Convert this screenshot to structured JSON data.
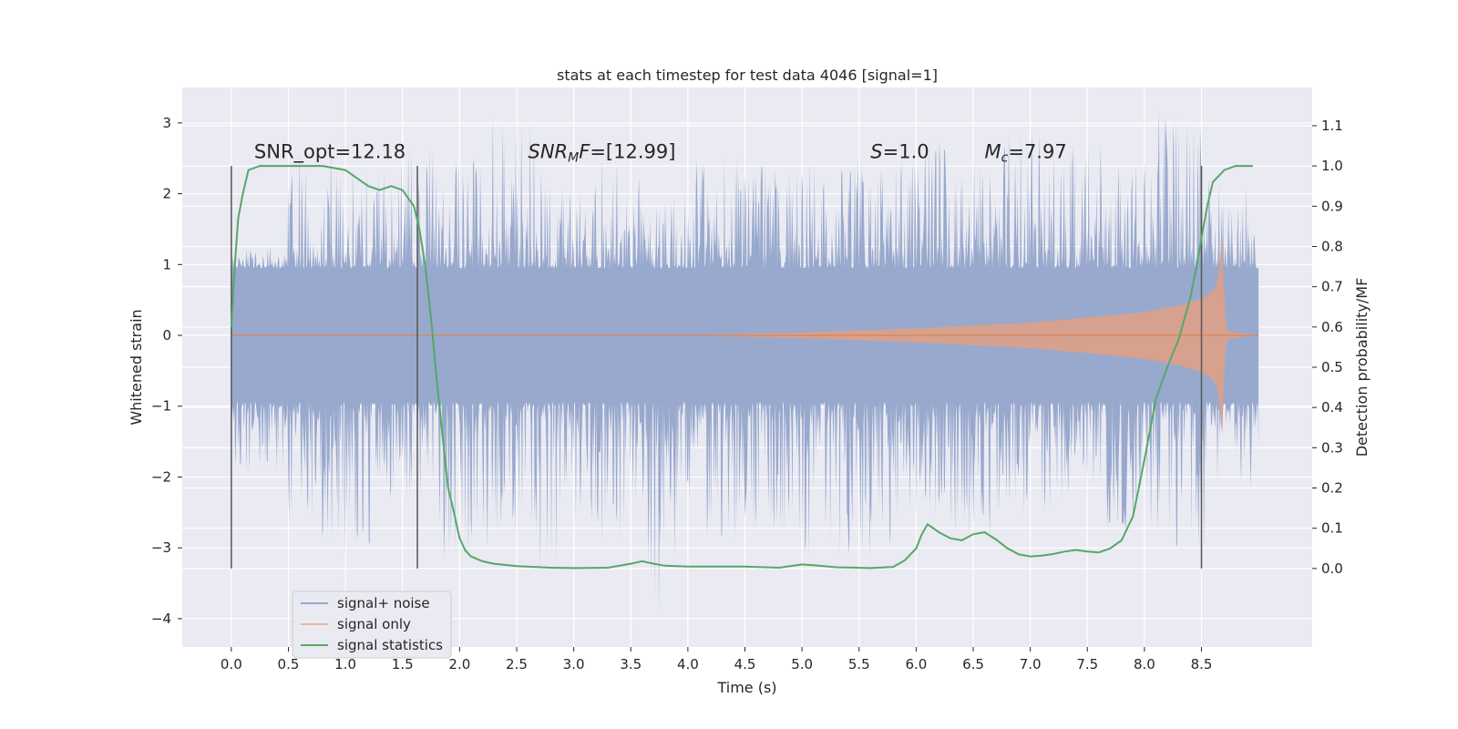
{
  "chart_data": {
    "type": "line",
    "title": "stats at each timestep for test data 4046 [signal=1]",
    "xlabel": "Time (s)",
    "ylabel": "Whitened strain",
    "y2label": "Detection probability/MF",
    "xlim": [
      -0.43,
      9.47
    ],
    "ylim": [
      -4.4,
      3.5
    ],
    "y2lim": [
      -0.195,
      1.195
    ],
    "xticks": [
      0.0,
      0.5,
      1.0,
      1.5,
      2.0,
      2.5,
      3.0,
      3.5,
      4.0,
      4.5,
      5.0,
      5.5,
      6.0,
      6.5,
      7.0,
      7.5,
      8.0,
      8.5
    ],
    "xtick_labels": [
      "0.0",
      "0.5",
      "1.0",
      "1.5",
      "2.0",
      "2.5",
      "3.0",
      "3.5",
      "4.0",
      "4.5",
      "5.0",
      "5.5",
      "6.0",
      "6.5",
      "7.0",
      "7.5",
      "8.0",
      "8.5"
    ],
    "yticks": [
      3,
      2,
      1,
      0,
      -1,
      -2,
      -3,
      -4
    ],
    "ytick_labels": [
      "3",
      "2",
      "1",
      "0",
      "−1",
      "−2",
      "−3",
      "−4"
    ],
    "y2ticks": [
      1.1,
      1.0,
      0.9,
      0.8,
      0.7,
      0.6,
      0.5,
      0.4,
      0.3,
      0.2,
      0.1,
      0.0
    ],
    "y2tick_labels": [
      "1.1",
      "1.0",
      "0.9",
      "0.8",
      "0.7",
      "0.6",
      "0.5",
      "0.4",
      "0.3",
      "0.2",
      "0.1",
      "0.0"
    ],
    "grid": true,
    "legend_placement": "lower-left",
    "colors": {
      "background": "#eaeaf2",
      "grid": "#ffffff",
      "noise": "#98a9cd",
      "signal": "#dd8452",
      "signal_fill": "#d9a08a",
      "stats": "#55a868",
      "vline": "#555555"
    },
    "series": [
      {
        "name": "signal+ noise",
        "axis": "left",
        "t_range": [
          0.0,
          9.0
        ],
        "band_peaks": [
          1.3,
          2.8,
          2.4,
          2.7,
          2.5,
          3.2,
          2.3,
          2.6,
          2.2,
          2.5,
          2.4,
          2.5,
          2.5,
          2.8,
          2.6,
          2.9,
          2.7,
          2.5,
          3.2,
          2.4
        ],
        "band_troughs": [
          -2.0,
          -2.9,
          -3.2,
          -2.4,
          -3.2,
          -2.8,
          -3.4,
          -3.0,
          -4.0,
          -3.0,
          -2.8,
          -3.2,
          -3.2,
          -2.6,
          -2.9,
          -2.6,
          -2.3,
          -2.8,
          -3.1,
          -2.2
        ]
      },
      {
        "name": "signal only",
        "axis": "left",
        "envelope": {
          "t": [
            0.0,
            4.0,
            5.0,
            6.0,
            7.0,
            7.5,
            8.0,
            8.3,
            8.5,
            8.6,
            8.65,
            8.68,
            8.7,
            8.72,
            9.0
          ],
          "amp": [
            0.0,
            0.0,
            0.04,
            0.1,
            0.18,
            0.25,
            0.33,
            0.42,
            0.52,
            0.62,
            0.8,
            1.45,
            0.5,
            0.05,
            0.0
          ]
        }
      },
      {
        "name": "signal statistics",
        "axis": "right",
        "x": [
          0.0,
          0.03,
          0.06,
          0.1,
          0.15,
          0.25,
          0.4,
          0.6,
          0.8,
          1.0,
          1.1,
          1.2,
          1.3,
          1.4,
          1.5,
          1.55,
          1.6,
          1.65,
          1.7,
          1.75,
          1.8,
          1.85,
          1.9,
          1.95,
          2.0,
          2.05,
          2.1,
          2.2,
          2.3,
          2.5,
          2.8,
          3.0,
          3.3,
          3.5,
          3.6,
          3.7,
          3.8,
          4.0,
          4.5,
          4.8,
          5.0,
          5.1,
          5.3,
          5.6,
          5.8,
          5.9,
          6.0,
          6.05,
          6.1,
          6.2,
          6.3,
          6.4,
          6.5,
          6.6,
          6.7,
          6.8,
          6.9,
          7.0,
          7.1,
          7.2,
          7.3,
          7.4,
          7.5,
          7.6,
          7.7,
          7.8,
          7.9,
          8.0,
          8.1,
          8.2,
          8.3,
          8.4,
          8.45,
          8.5,
          8.55,
          8.6,
          8.7,
          8.8,
          8.9,
          8.95
        ],
        "y": [
          0.6,
          0.75,
          0.87,
          0.93,
          0.99,
          1.0,
          1.0,
          1.0,
          1.0,
          0.99,
          0.97,
          0.95,
          0.94,
          0.95,
          0.94,
          0.92,
          0.9,
          0.84,
          0.75,
          0.62,
          0.47,
          0.33,
          0.2,
          0.14,
          0.075,
          0.045,
          0.03,
          0.018,
          0.012,
          0.006,
          0.002,
          0.001,
          0.002,
          0.012,
          0.018,
          0.012,
          0.007,
          0.005,
          0.005,
          0.002,
          0.01,
          0.008,
          0.003,
          0.001,
          0.004,
          0.02,
          0.05,
          0.085,
          0.11,
          0.09,
          0.075,
          0.07,
          0.085,
          0.09,
          0.072,
          0.05,
          0.035,
          0.03,
          0.032,
          0.036,
          0.042,
          0.046,
          0.042,
          0.04,
          0.05,
          0.07,
          0.13,
          0.27,
          0.42,
          0.5,
          0.57,
          0.67,
          0.74,
          0.82,
          0.9,
          0.96,
          0.99,
          1.0,
          1.0,
          1.0
        ]
      }
    ],
    "vlines": [
      {
        "x": 0.0,
        "y2_range": [
          0.0,
          1.0
        ]
      },
      {
        "x": 1.63,
        "y2_range": [
          0.0,
          1.0
        ]
      },
      {
        "x": 8.5,
        "y2_range": [
          0.0,
          1.0
        ]
      }
    ],
    "annotations": [
      {
        "x_data": 0.2,
        "y2": 1.02,
        "base": "SNR_opt=12.18",
        "sub": "",
        "rest": "",
        "italic": false
      },
      {
        "x_data": 2.6,
        "y2": 1.02,
        "base": "SNR",
        "sub": "M",
        "rest": "F=[12.99]",
        "italic": true
      },
      {
        "x_data": 5.6,
        "y2": 1.02,
        "base": "S",
        "sub": "",
        "rest": "=1.0",
        "italic": true
      },
      {
        "x_data": 6.6,
        "y2": 1.02,
        "base": "M",
        "sub": "c",
        "rest": "=7.97",
        "italic": true
      }
    ]
  },
  "legend": {
    "items": [
      {
        "label": "signal+ noise",
        "color": "#98a9cd"
      },
      {
        "label": "signal only",
        "color": "#ebb49c"
      },
      {
        "label": "signal statistics",
        "color": "#55a868"
      }
    ]
  }
}
